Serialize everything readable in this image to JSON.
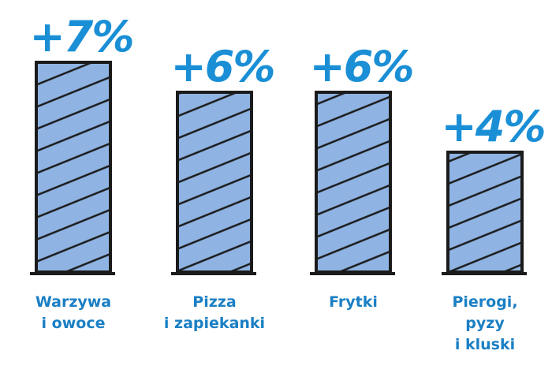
{
  "chart_data": {
    "type": "bar",
    "categories": [
      "Warzywa\ni owoce",
      "Pizza\ni zapiekanki",
      "Frytki",
      "Pierogi,\npyzy\ni kluski"
    ],
    "values": [
      7,
      6,
      6,
      4
    ],
    "value_labels": [
      "+7%",
      "+6%",
      "+6%",
      "+4%"
    ],
    "color": "#8fb4e3"
  }
}
